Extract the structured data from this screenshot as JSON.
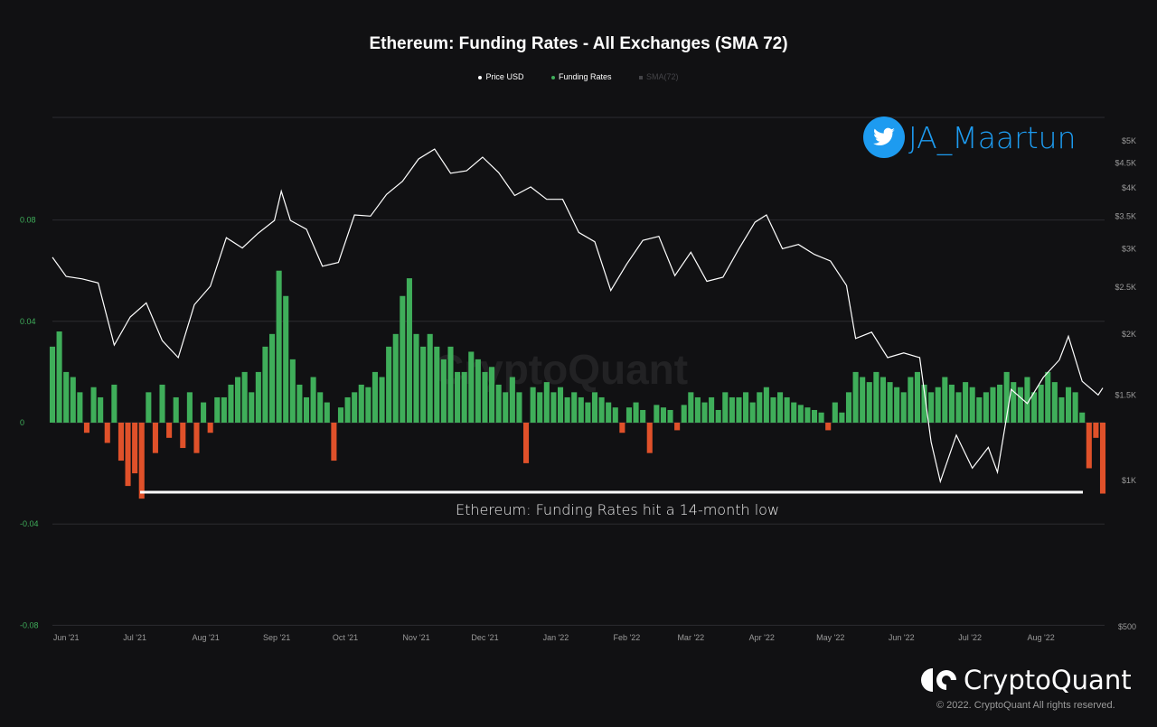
{
  "title": "Ethereum: Funding Rates - All Exchanges (SMA 72)",
  "legend": [
    {
      "label": "Price USD",
      "color": "#ffffff"
    },
    {
      "label": "Funding Rates",
      "color": "#3fae5a"
    },
    {
      "label": "SMA(72)",
      "color": "#444448"
    }
  ],
  "twitter": {
    "icon": "twitter-bird-icon",
    "handle": "JA_Maartun"
  },
  "watermark": "CryptoQuant",
  "annotation": "Ethereum: Funding Rates hit a 14-month low",
  "brand": {
    "name": "CryptoQuant",
    "copyright": "© 2022. CryptoQuant All rights reserved."
  },
  "chart_data": {
    "type": "bar+line",
    "title": "Ethereum: Funding Rates - All Exchanges (SMA 72)",
    "x_range": [
      "2021-05-26",
      "2022-08-28"
    ],
    "x_ticks": [
      {
        "date": "2021-06-01",
        "label": "Jun '21"
      },
      {
        "date": "2021-07-01",
        "label": "Jul '21"
      },
      {
        "date": "2021-08-01",
        "label": "Aug '21"
      },
      {
        "date": "2021-09-01",
        "label": "Sep '21"
      },
      {
        "date": "2021-10-01",
        "label": "Oct '21"
      },
      {
        "date": "2021-11-01",
        "label": "Nov '21"
      },
      {
        "date": "2021-12-01",
        "label": "Dec '21"
      },
      {
        "date": "2022-01-01",
        "label": "Jan '22"
      },
      {
        "date": "2022-02-01",
        "label": "Feb '22"
      },
      {
        "date": "2022-03-01",
        "label": "Mar '22"
      },
      {
        "date": "2022-04-01",
        "label": "Apr '22"
      },
      {
        "date": "2022-05-01",
        "label": "May '22"
      },
      {
        "date": "2022-06-01",
        "label": "Jun '22"
      },
      {
        "date": "2022-07-01",
        "label": "Jul '22"
      },
      {
        "date": "2022-08-01",
        "label": "Aug '22"
      }
    ],
    "left_axis": {
      "ylim": [
        -0.08,
        0.12
      ],
      "ticks": [
        {
          "v": 0.08,
          "label": "0.08"
        },
        {
          "v": 0.04,
          "label": "0.04"
        },
        {
          "v": 0,
          "label": "0"
        },
        {
          "v": -0.04,
          "label": "-0.04"
        },
        {
          "v": -0.08,
          "label": "-0.08"
        }
      ]
    },
    "right_axis": {
      "scale": "log",
      "ticks": [
        {
          "v": 5000,
          "label": "$5K"
        },
        {
          "v": 4500,
          "label": "$4.5K"
        },
        {
          "v": 4000,
          "label": "$4K"
        },
        {
          "v": 3500,
          "label": "$3.5K"
        },
        {
          "v": 3000,
          "label": "$3K"
        },
        {
          "v": 2500,
          "label": "$2.5K"
        },
        {
          "v": 2000,
          "label": "$2K"
        },
        {
          "v": 1500,
          "label": "$1.5K"
        },
        {
          "v": 1000,
          "label": "$1K"
        },
        {
          "v": 500,
          "label": "$500"
        }
      ]
    },
    "colors": {
      "positive": "#3fae5a",
      "negative": "#e0512a",
      "price": "#ffffff"
    },
    "funding_rates": [
      0.03,
      0.036,
      0.02,
      0.018,
      0.012,
      -0.004,
      0.014,
      0.01,
      -0.008,
      0.015,
      -0.015,
      -0.025,
      -0.02,
      -0.03,
      0.012,
      -0.012,
      0.015,
      -0.006,
      0.01,
      -0.01,
      0.012,
      -0.012,
      0.008,
      -0.004,
      0.01,
      0.01,
      0.015,
      0.018,
      0.02,
      0.012,
      0.02,
      0.03,
      0.035,
      0.06,
      0.05,
      0.025,
      0.015,
      0.01,
      0.018,
      0.012,
      0.008,
      -0.015,
      0.006,
      0.01,
      0.012,
      0.015,
      0.014,
      0.02,
      0.018,
      0.03,
      0.035,
      0.05,
      0.057,
      0.035,
      0.03,
      0.035,
      0.03,
      0.025,
      0.03,
      0.02,
      0.02,
      0.028,
      0.025,
      0.02,
      0.022,
      0.015,
      0.012,
      0.018,
      0.012,
      -0.016,
      0.014,
      0.012,
      0.016,
      0.012,
      0.014,
      0.01,
      0.012,
      0.01,
      0.008,
      0.012,
      0.01,
      0.008,
      0.006,
      -0.004,
      0.006,
      0.008,
      0.005,
      -0.012,
      0.007,
      0.006,
      0.005,
      -0.003,
      0.007,
      0.012,
      0.01,
      0.008,
      0.01,
      0.005,
      0.012,
      0.01,
      0.01,
      0.012,
      0.008,
      0.012,
      0.014,
      0.01,
      0.012,
      0.01,
      0.008,
      0.007,
      0.006,
      0.005,
      0.004,
      -0.003,
      0.008,
      0.004,
      0.012,
      0.02,
      0.018,
      0.016,
      0.02,
      0.018,
      0.016,
      0.014,
      0.012,
      0.018,
      0.02,
      0.015,
      0.012,
      0.014,
      0.018,
      0.015,
      0.012,
      0.016,
      0.014,
      0.01,
      0.012,
      0.014,
      0.015,
      0.02,
      0.016,
      0.014,
      0.018,
      0.012,
      0.015,
      0.02,
      0.016,
      0.01,
      0.014,
      0.012,
      0.004,
      -0.018,
      -0.006,
      -0.028
    ],
    "price_usd": [
      [
        "2021-05-26",
        2880
      ],
      [
        "2021-06-01",
        2630
      ],
      [
        "2021-06-08",
        2600
      ],
      [
        "2021-06-15",
        2550
      ],
      [
        "2021-06-22",
        1900
      ],
      [
        "2021-06-29",
        2170
      ],
      [
        "2021-07-06",
        2320
      ],
      [
        "2021-07-13",
        1940
      ],
      [
        "2021-07-20",
        1790
      ],
      [
        "2021-07-27",
        2300
      ],
      [
        "2021-08-03",
        2510
      ],
      [
        "2021-08-10",
        3160
      ],
      [
        "2021-08-17",
        3010
      ],
      [
        "2021-08-24",
        3230
      ],
      [
        "2021-08-31",
        3430
      ],
      [
        "2021-09-03",
        3940
      ],
      [
        "2021-09-07",
        3430
      ],
      [
        "2021-09-14",
        3290
      ],
      [
        "2021-09-21",
        2760
      ],
      [
        "2021-09-28",
        2810
      ],
      [
        "2021-10-05",
        3520
      ],
      [
        "2021-10-12",
        3500
      ],
      [
        "2021-10-19",
        3880
      ],
      [
        "2021-10-26",
        4130
      ],
      [
        "2021-11-02",
        4590
      ],
      [
        "2021-11-09",
        4810
      ],
      [
        "2021-11-16",
        4290
      ],
      [
        "2021-11-23",
        4340
      ],
      [
        "2021-11-30",
        4630
      ],
      [
        "2021-12-07",
        4300
      ],
      [
        "2021-12-14",
        3860
      ],
      [
        "2021-12-21",
        4020
      ],
      [
        "2021-12-28",
        3790
      ],
      [
        "2022-01-04",
        3790
      ],
      [
        "2022-01-11",
        3240
      ],
      [
        "2022-01-18",
        3100
      ],
      [
        "2022-01-25",
        2460
      ],
      [
        "2022-02-01",
        2790
      ],
      [
        "2022-02-08",
        3120
      ],
      [
        "2022-02-15",
        3180
      ],
      [
        "2022-02-22",
        2640
      ],
      [
        "2022-03-01",
        2950
      ],
      [
        "2022-03-08",
        2570
      ],
      [
        "2022-03-15",
        2620
      ],
      [
        "2022-03-22",
        3000
      ],
      [
        "2022-03-29",
        3400
      ],
      [
        "2022-04-03",
        3520
      ],
      [
        "2022-04-10",
        3000
      ],
      [
        "2022-04-17",
        3060
      ],
      [
        "2022-04-24",
        2920
      ],
      [
        "2022-05-01",
        2830
      ],
      [
        "2022-05-08",
        2520
      ],
      [
        "2022-05-12",
        1960
      ],
      [
        "2022-05-19",
        2020
      ],
      [
        "2022-05-26",
        1790
      ],
      [
        "2022-06-02",
        1830
      ],
      [
        "2022-06-09",
        1790
      ],
      [
        "2022-06-14",
        1200
      ],
      [
        "2022-06-18",
        995
      ],
      [
        "2022-06-25",
        1240
      ],
      [
        "2022-07-02",
        1060
      ],
      [
        "2022-07-09",
        1170
      ],
      [
        "2022-07-13",
        1040
      ],
      [
        "2022-07-19",
        1540
      ],
      [
        "2022-07-26",
        1440
      ],
      [
        "2022-08-02",
        1630
      ],
      [
        "2022-08-09",
        1770
      ],
      [
        "2022-08-13",
        1980
      ],
      [
        "2022-08-19",
        1600
      ],
      [
        "2022-08-26",
        1500
      ],
      [
        "2022-08-28",
        1550
      ]
    ]
  }
}
